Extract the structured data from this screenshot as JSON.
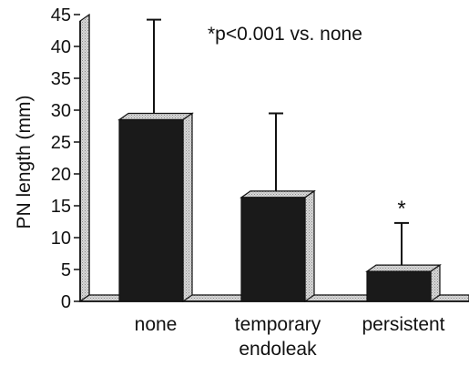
{
  "chart_data": {
    "type": "bar",
    "categories": [
      "none",
      "temporary\nendoleak",
      "persistent"
    ],
    "values": [
      28.5,
      16.3,
      4.7
    ],
    "error_upper": [
      43.2,
      28.5,
      11.3
    ],
    "significance_marks": [
      "",
      "",
      "*"
    ],
    "annotation": "*p<0.001 vs. none",
    "title": "",
    "xlabel": "",
    "ylabel": "PN length (mm)",
    "ylim": [
      0,
      45
    ],
    "yticks": [
      0,
      5,
      10,
      15,
      20,
      25,
      30,
      35,
      40,
      45
    ],
    "grid": false,
    "style": "3d-bar",
    "colors": {
      "bar_front": "#1a1a1a",
      "bar_side": "#cfcfcf",
      "floor": "#cfcfcf",
      "axis": "#111111"
    }
  }
}
